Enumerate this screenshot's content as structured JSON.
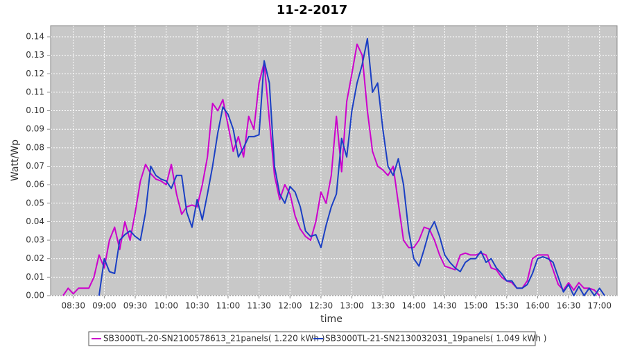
{
  "chart_data": {
    "type": "line",
    "title": "11-2-2017",
    "x_label": "time",
    "y_label": "Watt/Wp",
    "x": [
      "08:20",
      "08:25",
      "08:30",
      "08:35",
      "08:40",
      "08:45",
      "08:50",
      "08:55",
      "09:00",
      "09:05",
      "09:10",
      "09:15",
      "09:20",
      "09:25",
      "09:30",
      "09:35",
      "09:40",
      "09:45",
      "09:50",
      "09:55",
      "10:00",
      "10:05",
      "10:10",
      "10:15",
      "10:20",
      "10:25",
      "10:30",
      "10:35",
      "10:40",
      "10:45",
      "10:50",
      "10:55",
      "11:00",
      "11:05",
      "11:10",
      "11:15",
      "11:20",
      "11:25",
      "11:30",
      "11:35",
      "11:40",
      "11:45",
      "11:50",
      "11:55",
      "12:00",
      "12:05",
      "12:10",
      "12:15",
      "12:20",
      "12:25",
      "12:30",
      "12:35",
      "12:40",
      "12:45",
      "12:50",
      "12:55",
      "13:00",
      "13:05",
      "13:10",
      "13:15",
      "13:20",
      "13:25",
      "13:30",
      "13:35",
      "13:40",
      "13:45",
      "13:50",
      "13:55",
      "14:00",
      "14:05",
      "14:10",
      "14:15",
      "14:20",
      "14:25",
      "14:30",
      "14:35",
      "14:40",
      "14:45",
      "14:50",
      "14:55",
      "15:00",
      "15:05",
      "15:10",
      "15:15",
      "15:20",
      "15:25",
      "15:30",
      "15:35",
      "15:40",
      "15:45",
      "15:50",
      "15:55",
      "16:00",
      "16:05",
      "16:10",
      "16:15",
      "16:20",
      "16:25",
      "16:30",
      "16:35",
      "16:40",
      "16:45",
      "16:50",
      "16:55",
      "17:00",
      "17:05"
    ],
    "series": [
      {
        "name": "SB3000TL-20-SN2100578613_21panels( 1.220 kWh )",
        "color": "#cc00cc",
        "values": [
          0.0,
          0.004,
          0.001,
          0.004,
          0.004,
          0.004,
          0.01,
          0.022,
          0.015,
          0.03,
          0.037,
          0.025,
          0.04,
          0.03,
          0.045,
          0.062,
          0.071,
          0.066,
          0.063,
          0.062,
          0.06,
          0.071,
          0.055,
          0.044,
          0.048,
          0.049,
          0.048,
          0.06,
          0.075,
          0.104,
          0.1,
          0.106,
          0.092,
          0.078,
          0.086,
          0.075,
          0.097,
          0.09,
          0.115,
          0.126,
          0.095,
          0.065,
          0.052,
          0.06,
          0.055,
          0.043,
          0.036,
          0.032,
          0.03,
          0.04,
          0.056,
          0.05,
          0.065,
          0.097,
          0.067,
          0.105,
          0.12,
          0.136,
          0.13,
          0.1,
          0.078,
          0.07,
          0.068,
          0.065,
          0.07,
          0.05,
          0.03,
          0.026,
          0.026,
          0.03,
          0.037,
          0.036,
          0.03,
          0.022,
          0.016,
          0.015,
          0.014,
          0.022,
          0.023,
          0.022,
          0.022,
          0.023,
          0.022,
          0.015,
          0.014,
          0.01,
          0.008,
          0.007,
          0.004,
          0.004,
          0.008,
          0.02,
          0.022,
          0.022,
          0.022,
          0.014,
          0.006,
          0.003,
          0.007,
          0.003,
          0.007,
          0.004,
          0.004,
          0.003,
          0.0,
          null
        ]
      },
      {
        "name": "SB3000TL-21-SN2130032031_19panels( 1.049 kWh )",
        "color": "#1a3fc4",
        "values": [
          null,
          null,
          null,
          null,
          null,
          null,
          null,
          0.0,
          0.02,
          0.013,
          0.012,
          0.03,
          0.033,
          0.035,
          0.032,
          0.03,
          0.045,
          0.07,
          0.065,
          0.063,
          0.062,
          0.058,
          0.065,
          0.065,
          0.045,
          0.037,
          0.052,
          0.041,
          0.055,
          0.07,
          0.088,
          0.102,
          0.098,
          0.09,
          0.075,
          0.08,
          0.086,
          0.086,
          0.087,
          0.127,
          0.115,
          0.07,
          0.055,
          0.05,
          0.059,
          0.056,
          0.048,
          0.035,
          0.032,
          0.033,
          0.026,
          0.038,
          0.048,
          0.055,
          0.085,
          0.075,
          0.1,
          0.115,
          0.125,
          0.139,
          0.11,
          0.115,
          0.09,
          0.07,
          0.065,
          0.074,
          0.06,
          0.035,
          0.02,
          0.016,
          0.025,
          0.035,
          0.04,
          0.032,
          0.022,
          0.018,
          0.015,
          0.013,
          0.018,
          0.02,
          0.02,
          0.024,
          0.018,
          0.02,
          0.015,
          0.012,
          0.008,
          0.008,
          0.004,
          0.004,
          0.006,
          0.012,
          0.02,
          0.021,
          0.02,
          0.018,
          0.01,
          0.002,
          0.006,
          0.0,
          0.005,
          0.0,
          0.004,
          0.0,
          0.004,
          0.0
        ]
      }
    ],
    "xlim": [
      "08:08",
      "17:17"
    ],
    "xticks": [
      "08:30",
      "09:00",
      "09:30",
      "10:00",
      "10:30",
      "11:00",
      "11:30",
      "12:00",
      "12:30",
      "13:00",
      "13:30",
      "14:00",
      "14:30",
      "15:00",
      "15:30",
      "16:00",
      "16:30",
      "17:00"
    ],
    "ylim": [
      0,
      0.146
    ],
    "yticks": [
      {
        "value": 0,
        "label": "0.00"
      },
      {
        "value": 0.01,
        "label": "0.01"
      },
      {
        "value": 0.02,
        "label": "0.02"
      },
      {
        "value": 0.03,
        "label": "0.03"
      },
      {
        "value": 0.04,
        "label": "0.04"
      },
      {
        "value": 0.05,
        "label": "0.05"
      },
      {
        "value": 0.06,
        "label": "0.06"
      },
      {
        "value": 0.07,
        "label": "0.07"
      },
      {
        "value": 0.08,
        "label": "0.08"
      },
      {
        "value": 0.09,
        "label": "0.09"
      },
      {
        "value": 0.1,
        "label": "0.10"
      },
      {
        "value": 0.11,
        "label": "0.11"
      },
      {
        "value": 0.12,
        "label": "0.12"
      },
      {
        "value": 0.13,
        "label": "0.13"
      },
      {
        "value": 0.14,
        "label": "0.14"
      }
    ],
    "grid": true
  }
}
